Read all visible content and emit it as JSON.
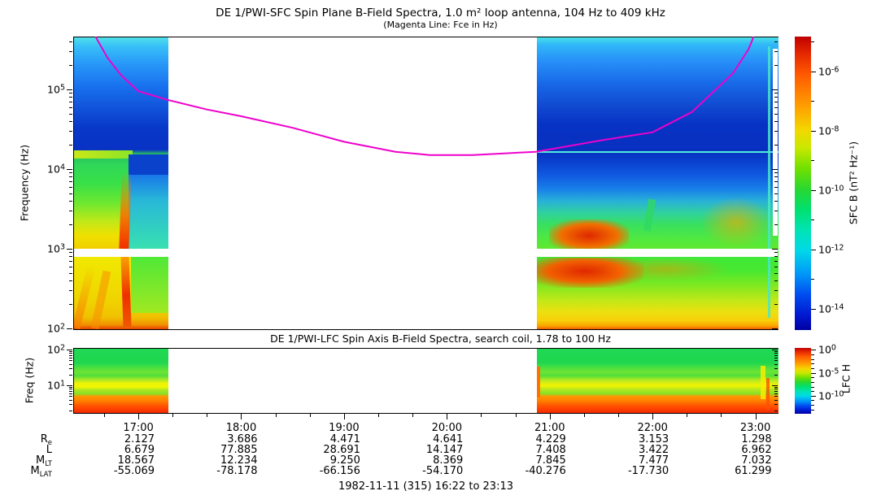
{
  "chart_data": [
    {
      "id": "sfc",
      "type": "heatmap",
      "title": "DE 1/PWI-SFC  Spin Plane B-Field Spectra, 1.0 m² loop antenna, 104 Hz to 409 kHz",
      "subtitle": "(Magenta Line: Fce in Hz)",
      "ylabel": "Frequency (Hz)",
      "yaxis": {
        "scale": "log",
        "range_hz": [
          100,
          409000
        ],
        "tick_exponents": [
          5,
          4,
          3,
          2
        ]
      },
      "xaxis": {
        "start": "16:22",
        "end": "23:13",
        "major_ticks": [
          "17:00",
          "18:00",
          "19:00",
          "20:00",
          "21:00",
          "22:00",
          "23:00"
        ],
        "minor_tick_minutes": 20
      },
      "data_intervals": [
        [
          "16:22",
          "17:17"
        ],
        [
          "20:52",
          "23:13"
        ]
      ],
      "data_gap": {
        "start": "17:17",
        "end": "20:52"
      },
      "instrument_artifact_line_hz": 17000,
      "white_band_hz": 1000,
      "colorbar": {
        "label": "SFC B (nT² Hz⁻¹)",
        "tick_exponents": [
          -6,
          -8,
          -10,
          -12,
          -14
        ],
        "colormap": "rainbow",
        "top_color": "#c00000",
        "bottom_color": "#0000a0"
      },
      "fce_color": "#ee00cc",
      "fce_line_hz": [
        [
          "16:35",
          460000
        ],
        [
          "16:42",
          250000
        ],
        [
          "16:50",
          150000
        ],
        [
          "17:00",
          95000
        ],
        [
          "17:17",
          74000
        ],
        [
          "17:40",
          56000
        ],
        [
          "18:00",
          46000
        ],
        [
          "18:30",
          33000
        ],
        [
          "19:00",
          22000
        ],
        [
          "19:30",
          16500
        ],
        [
          "19:50",
          15000
        ],
        [
          "20:15",
          15000
        ],
        [
          "20:52",
          16500
        ],
        [
          "21:30",
          23000
        ],
        [
          "22:00",
          29000
        ],
        [
          "22:23",
          52000
        ],
        [
          "22:47",
          160000
        ],
        [
          "22:56",
          320000
        ],
        [
          "22:59",
          460000
        ]
      ]
    },
    {
      "id": "lfc",
      "type": "heatmap",
      "title": "DE 1/PWI-LFC  Spin Axis B-Field Spectra, search coil, 1.78 to 100 Hz",
      "ylabel": "Freq (Hz)",
      "yaxis": {
        "scale": "log",
        "range_hz": [
          1.78,
          100
        ],
        "tick_exponents": [
          2,
          1
        ]
      },
      "x_shared_with": "sfc",
      "colorbar": {
        "label": "LFC H",
        "tick_exponents": [
          0,
          -5,
          -10
        ],
        "colormap": "rainbow"
      }
    },
    {
      "id": "ephemeris",
      "type": "table",
      "columns": [
        "17:00",
        "18:00",
        "19:00",
        "20:00",
        "21:00",
        "22:00",
        "23:00"
      ],
      "rows": [
        {
          "label": "R",
          "sub": "e",
          "values": [
            "2.127",
            "3.686",
            "4.471",
            "4.641",
            "4.229",
            "3.153",
            "1.298"
          ]
        },
        {
          "label": "L",
          "sub": "",
          "values": [
            "6.679",
            "77.885",
            "28.691",
            "14.147",
            "7.408",
            "3.422",
            "6.962"
          ]
        },
        {
          "label": "M",
          "sub": "LT",
          "values": [
            "18.567",
            "12.234",
            "9.250",
            "8.369",
            "7.845",
            "7.477",
            "7.032"
          ]
        },
        {
          "label": "M",
          "sub": "LAT",
          "values": [
            "-55.069",
            "-78.178",
            "-66.156",
            "-54.170",
            "-40.276",
            "-17.730",
            "61.299"
          ]
        }
      ],
      "footer": "1982-11-11 (315) 16:22 to 23:13"
    }
  ]
}
